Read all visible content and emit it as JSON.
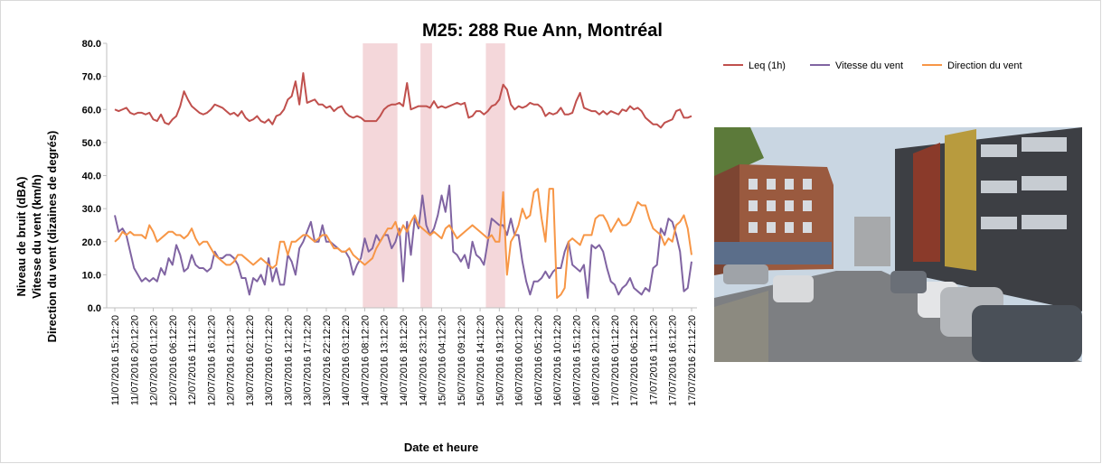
{
  "chart_data": {
    "type": "line",
    "title": "M25: 288 Rue Ann, Montréal",
    "y_label_lines": [
      "Niveau de bruit (dBA)",
      "Vitesse du vent (km/h)",
      "Direction du vent (dizaines de degrés)"
    ],
    "x_label": "Date et heure",
    "categories": [
      "11/07/2016 15:12:20",
      null,
      null,
      null,
      null,
      "11/07/2016 20:12:20",
      null,
      null,
      null,
      null,
      "12/07/2016 01:12:20",
      null,
      null,
      null,
      null,
      "12/07/2016 06:12:20",
      null,
      null,
      null,
      null,
      "12/07/2016 11:12:20",
      null,
      null,
      null,
      null,
      "12/07/2016 16:12:20",
      null,
      null,
      null,
      null,
      "12/07/2016 21:12:20",
      null,
      null,
      null,
      null,
      "13/07/2016 02:12:20",
      null,
      null,
      null,
      null,
      "13/07/2016 07:12:20",
      null,
      null,
      null,
      null,
      "13/07/2016 12:12:20",
      null,
      null,
      null,
      null,
      "13/07/2016 17:12:20",
      null,
      null,
      null,
      null,
      "13/07/2016 22:12:20",
      null,
      null,
      null,
      null,
      "14/07/2016 03:12:20",
      null,
      null,
      null,
      null,
      "14/07/2016 08:12:20",
      null,
      null,
      null,
      null,
      "14/07/2016 13:12:20",
      null,
      null,
      null,
      null,
      "14/07/2016 18:12:20",
      null,
      null,
      null,
      null,
      "14/07/2016 23:12:20",
      null,
      null,
      null,
      null,
      "15/07/2016 04:12:20",
      null,
      null,
      null,
      null,
      "15/07/2016 09:12:20",
      null,
      null,
      null,
      null,
      "15/07/2016 14:12:20",
      null,
      null,
      null,
      null,
      "15/07/2016 19:12:20",
      null,
      null,
      null,
      null,
      "16/07/2016 00:12:20",
      null,
      null,
      null,
      null,
      "16/07/2016 05:12:20",
      null,
      null,
      null,
      null,
      "16/07/2016 10:12:20",
      null,
      null,
      null,
      null,
      "16/07/2016 15:12:20",
      null,
      null,
      null,
      null,
      "16/07/2016 20:12:20",
      null,
      null,
      null,
      null,
      "17/07/2016 01:12:20",
      null,
      null,
      null,
      null,
      "17/07/2016 06:12:20",
      null,
      null,
      null,
      null,
      "17/07/2016 11:12:20",
      null,
      null,
      null,
      null,
      "17/07/2016 16:12:20",
      null,
      null,
      null,
      null,
      "17/07/2016 21:12:20"
    ],
    "series": [
      {
        "name": "Leq (1h)",
        "color": "#c0504d",
        "values": [
          60,
          59.5,
          60,
          60.5,
          59,
          58.5,
          59,
          59,
          58.5,
          59,
          57,
          56.5,
          58.5,
          56,
          55.5,
          57,
          58,
          61,
          65.5,
          63,
          61,
          60,
          59,
          58.5,
          59,
          60,
          61.5,
          61,
          60.5,
          59.5,
          58.5,
          59,
          58,
          59.5,
          57.5,
          56.5,
          57,
          58,
          56.5,
          56,
          57,
          55.5,
          58,
          58.5,
          60,
          63,
          64,
          68.5,
          61.5,
          71,
          62,
          62.5,
          63,
          61.5,
          61.5,
          60.5,
          61,
          59.5,
          60.5,
          61,
          59,
          58,
          57.5,
          58,
          57.5,
          56.5,
          56.5,
          56.5,
          56.5,
          58,
          60,
          61,
          61.5,
          61.5,
          62,
          61,
          68,
          60,
          60.5,
          61,
          61,
          61,
          60.5,
          62.5,
          60.5,
          61,
          60.5,
          61,
          61.5,
          62,
          61.5,
          62,
          57.5,
          58,
          59.5,
          59.5,
          58.5,
          59.5,
          61,
          61.5,
          63,
          67.5,
          66,
          61.5,
          60,
          61,
          60.5,
          61,
          62,
          61.5,
          61.5,
          60.5,
          58,
          59,
          58.5,
          59,
          60.5,
          58.5,
          58.5,
          59,
          62.5,
          65,
          60.5,
          60,
          59.5,
          59.5,
          58.5,
          59.5,
          58.5,
          59.5,
          59,
          58.5,
          60,
          59.5,
          61,
          60,
          60.5,
          59.5,
          57.5,
          56.5,
          55.5,
          55.5,
          54.5,
          56,
          56.5,
          57,
          59.5,
          60,
          57.5,
          57.5,
          58
        ]
      },
      {
        "name": "Vitesse du vent",
        "color": "#8064a2",
        "values": [
          28,
          23,
          24,
          22,
          17,
          12,
          10,
          8,
          9,
          8,
          9,
          8,
          12,
          10,
          15,
          13,
          19,
          16,
          11,
          12,
          16,
          13,
          12,
          12,
          11,
          12,
          17,
          15,
          15,
          16,
          16,
          15,
          13,
          9,
          9,
          4,
          9,
          8,
          10,
          7,
          15,
          8,
          12,
          7,
          7,
          16,
          14,
          10,
          18,
          20,
          23,
          26,
          20,
          20,
          25,
          20,
          20,
          19,
          18,
          17,
          17,
          15,
          10,
          13,
          15,
          21,
          17,
          18,
          22,
          20,
          22,
          22,
          18,
          20,
          24,
          8,
          26,
          16,
          27,
          24,
          34,
          25,
          22,
          24,
          28,
          34,
          29,
          37,
          17,
          16,
          14,
          16,
          12,
          20,
          16,
          15,
          13,
          20,
          27,
          26,
          25,
          25,
          22,
          27,
          22,
          22,
          14,
          8,
          4,
          8,
          8,
          9,
          11,
          9,
          11,
          12,
          12,
          17,
          20,
          13,
          12,
          11,
          13,
          3,
          19,
          18,
          19,
          17,
          12,
          8,
          7,
          4,
          6,
          7,
          9,
          6,
          5,
          4,
          6,
          5,
          12,
          13,
          24,
          22,
          27,
          26,
          22,
          17,
          5,
          6,
          14
        ]
      },
      {
        "name": "Direction du vent",
        "color": "#f79646",
        "values": [
          20,
          21,
          23,
          22,
          23,
          22,
          22,
          22,
          21,
          25,
          23,
          20,
          21,
          22,
          23,
          23,
          22,
          22,
          21,
          22,
          24,
          21,
          19,
          20,
          20,
          18,
          16,
          15,
          14,
          13,
          13,
          14,
          16,
          16,
          15,
          14,
          13,
          14,
          15,
          14,
          13,
          12,
          13,
          20,
          20,
          16,
          20,
          20,
          21,
          22,
          22,
          21,
          20,
          21,
          22,
          22,
          20,
          18,
          18,
          17,
          17,
          18,
          16,
          15,
          14,
          13,
          14,
          15,
          18,
          20,
          22,
          24,
          24,
          26,
          22,
          25,
          23,
          26,
          28,
          25,
          24,
          23,
          22,
          23,
          22,
          21,
          24,
          25,
          23,
          21,
          22,
          23,
          24,
          25,
          24,
          23,
          22,
          21,
          22,
          20,
          20,
          35,
          10,
          20,
          22,
          25,
          30,
          27,
          28,
          35,
          36,
          27,
          20,
          36,
          36,
          3,
          4,
          6,
          20,
          21,
          20,
          19,
          22,
          22,
          22,
          27,
          28,
          28,
          26,
          23,
          25,
          27,
          25,
          25,
          26,
          29,
          32,
          31,
          31,
          27,
          24,
          23,
          22,
          19,
          21,
          20,
          25,
          26,
          28,
          24,
          16
        ]
      }
    ],
    "highlights": [
      [
        65,
        73
      ],
      [
        80,
        82
      ],
      [
        97,
        101
      ]
    ],
    "highlight_color": "#f2d0d4",
    "ylim": [
      0,
      80
    ],
    "yticks": [
      {
        "value": 0,
        "label": "0.0"
      },
      {
        "value": 10,
        "label": "10.0"
      },
      {
        "value": 20,
        "label": "20.0"
      },
      {
        "value": 30,
        "label": "30.0"
      },
      {
        "value": 40,
        "label": "40.0"
      },
      {
        "value": 50,
        "label": "50.0"
      },
      {
        "value": 60,
        "label": "60.0"
      },
      {
        "value": 70,
        "label": "70.0"
      },
      {
        "value": 80,
        "label": "80.0"
      }
    ],
    "grid": false,
    "legend": "top-right"
  }
}
